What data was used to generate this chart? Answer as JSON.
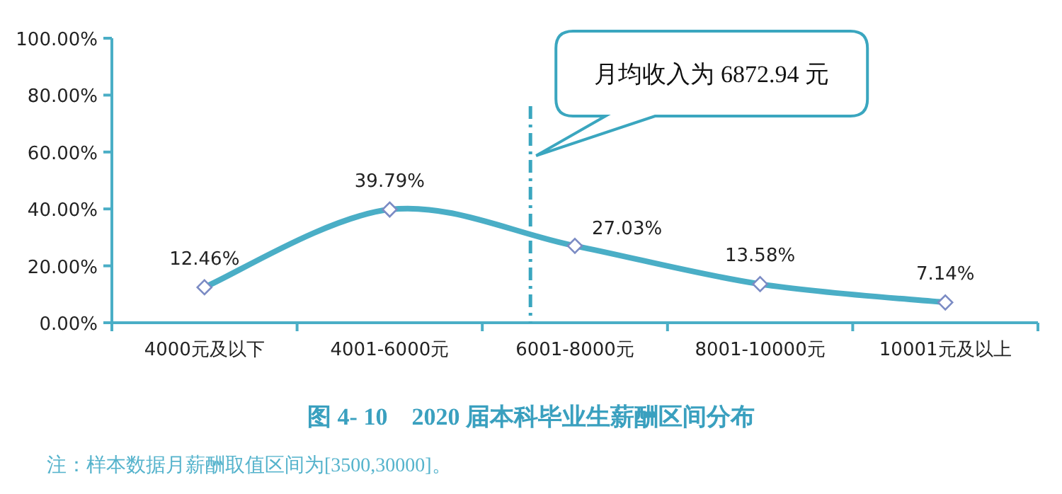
{
  "chart_data": {
    "type": "line",
    "title": "图 4- 10　2020 届本科毕业生薪酬区间分布",
    "categories": [
      "4000元及以下",
      "4001-6000元",
      "6001-8000元",
      "8001-10000元",
      "10001元及以上"
    ],
    "series": [
      {
        "color": "#4aaec6",
        "values": [
          12.46,
          39.79,
          27.03,
          13.58,
          7.14
        ],
        "value_labels": [
          "12.46%",
          "39.79%",
          "27.03%",
          "13.58%",
          "7.14%"
        ]
      }
    ],
    "ylim": [
      0,
      100
    ],
    "yticks": [
      {
        "value": 0,
        "label": "0.00%"
      },
      {
        "value": 20,
        "label": "20.00%"
      },
      {
        "value": 40,
        "label": "40.00%"
      },
      {
        "value": 60,
        "label": "60.00%"
      },
      {
        "value": 80,
        "label": "80.00%"
      },
      {
        "value": 100,
        "label": "100.00%"
      }
    ],
    "marker": "diamond",
    "line_style": "solid",
    "ref_lines": [
      {
        "axis": "x",
        "value": "6001-8000元",
        "label": "月均收入为 6872.94 元",
        "color": "#3aa6bf",
        "line_style": "dashed"
      }
    ],
    "annotations": [
      "注：样本数据月薪酬取值区间为[3500,30000]。"
    ]
  }
}
